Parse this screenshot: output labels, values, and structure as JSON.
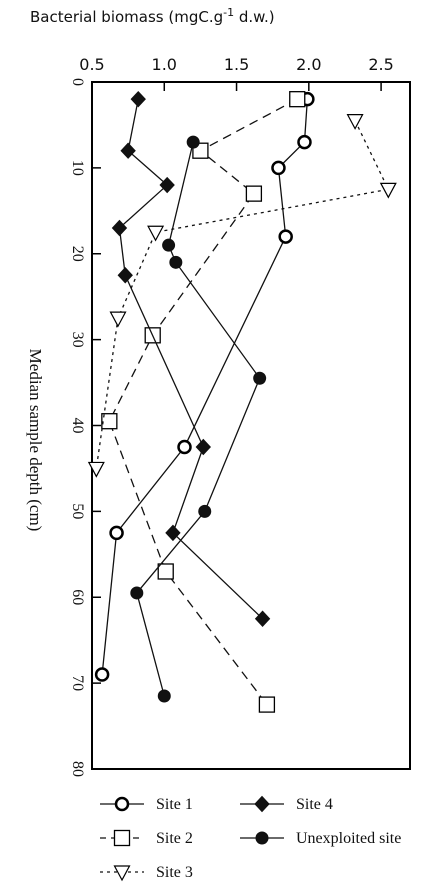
{
  "chart_data": {
    "type": "line",
    "x_axis": {
      "label": "Bacterial biomass (mgC.g",
      "label_superscript": "-1",
      "label_suffix": " d.w.)",
      "position": "top",
      "lim": [
        0.5,
        2.7
      ],
      "ticks": [
        0.5,
        1.0,
        1.5,
        2.0,
        2.5
      ],
      "tick_labels": [
        "0.5",
        "1.0",
        "1.5",
        "2.0",
        "2.5"
      ]
    },
    "y_axis": {
      "label": "Median sample depth (cm)",
      "inverted": true,
      "lim": [
        0,
        80
      ],
      "ticks": [
        0,
        10,
        20,
        30,
        40,
        50,
        60,
        70,
        80
      ],
      "tick_labels": [
        "0",
        "10",
        "20",
        "30",
        "40",
        "50",
        "60",
        "70",
        "80"
      ]
    },
    "grid": false,
    "legend_position": "bottom",
    "series": [
      {
        "name": "Site 1",
        "marker": "circle-open",
        "line": "solid",
        "points": [
          [
            1.99,
            2
          ],
          [
            1.97,
            7
          ],
          [
            1.79,
            10
          ],
          [
            1.84,
            18
          ],
          [
            1.14,
            42.5
          ],
          [
            0.67,
            52.5
          ],
          [
            0.57,
            69
          ]
        ]
      },
      {
        "name": "Site 2",
        "marker": "square-open",
        "line": "dashed",
        "points": [
          [
            1.92,
            2
          ],
          [
            1.25,
            8
          ],
          [
            1.62,
            13
          ],
          [
            0.92,
            29.5
          ],
          [
            0.62,
            39.5
          ],
          [
            1.01,
            57
          ],
          [
            1.71,
            72.5
          ]
        ]
      },
      {
        "name": "Site 3",
        "marker": "triangle-open",
        "line": "dotted",
        "points": [
          [
            2.32,
            4.5
          ],
          [
            2.55,
            12.5
          ],
          [
            0.94,
            17.5
          ],
          [
            0.68,
            27.5
          ],
          [
            0.53,
            45
          ]
        ]
      },
      {
        "name": "Site 4",
        "marker": "diamond-filled",
        "line": "solid",
        "points": [
          [
            0.82,
            2
          ],
          [
            0.75,
            8
          ],
          [
            1.02,
            12
          ],
          [
            0.69,
            17
          ],
          [
            0.73,
            22.5
          ],
          [
            1.27,
            42.5
          ],
          [
            1.06,
            52.5
          ],
          [
            1.68,
            62.5
          ]
        ]
      },
      {
        "name": "Unexploited site",
        "marker": "circle-filled",
        "line": "solid",
        "points": [
          [
            1.2,
            7
          ],
          [
            1.03,
            19
          ],
          [
            1.08,
            21
          ],
          [
            1.66,
            34.5
          ],
          [
            1.28,
            50
          ],
          [
            0.81,
            59.5
          ],
          [
            1.0,
            71.5
          ]
        ]
      }
    ]
  }
}
